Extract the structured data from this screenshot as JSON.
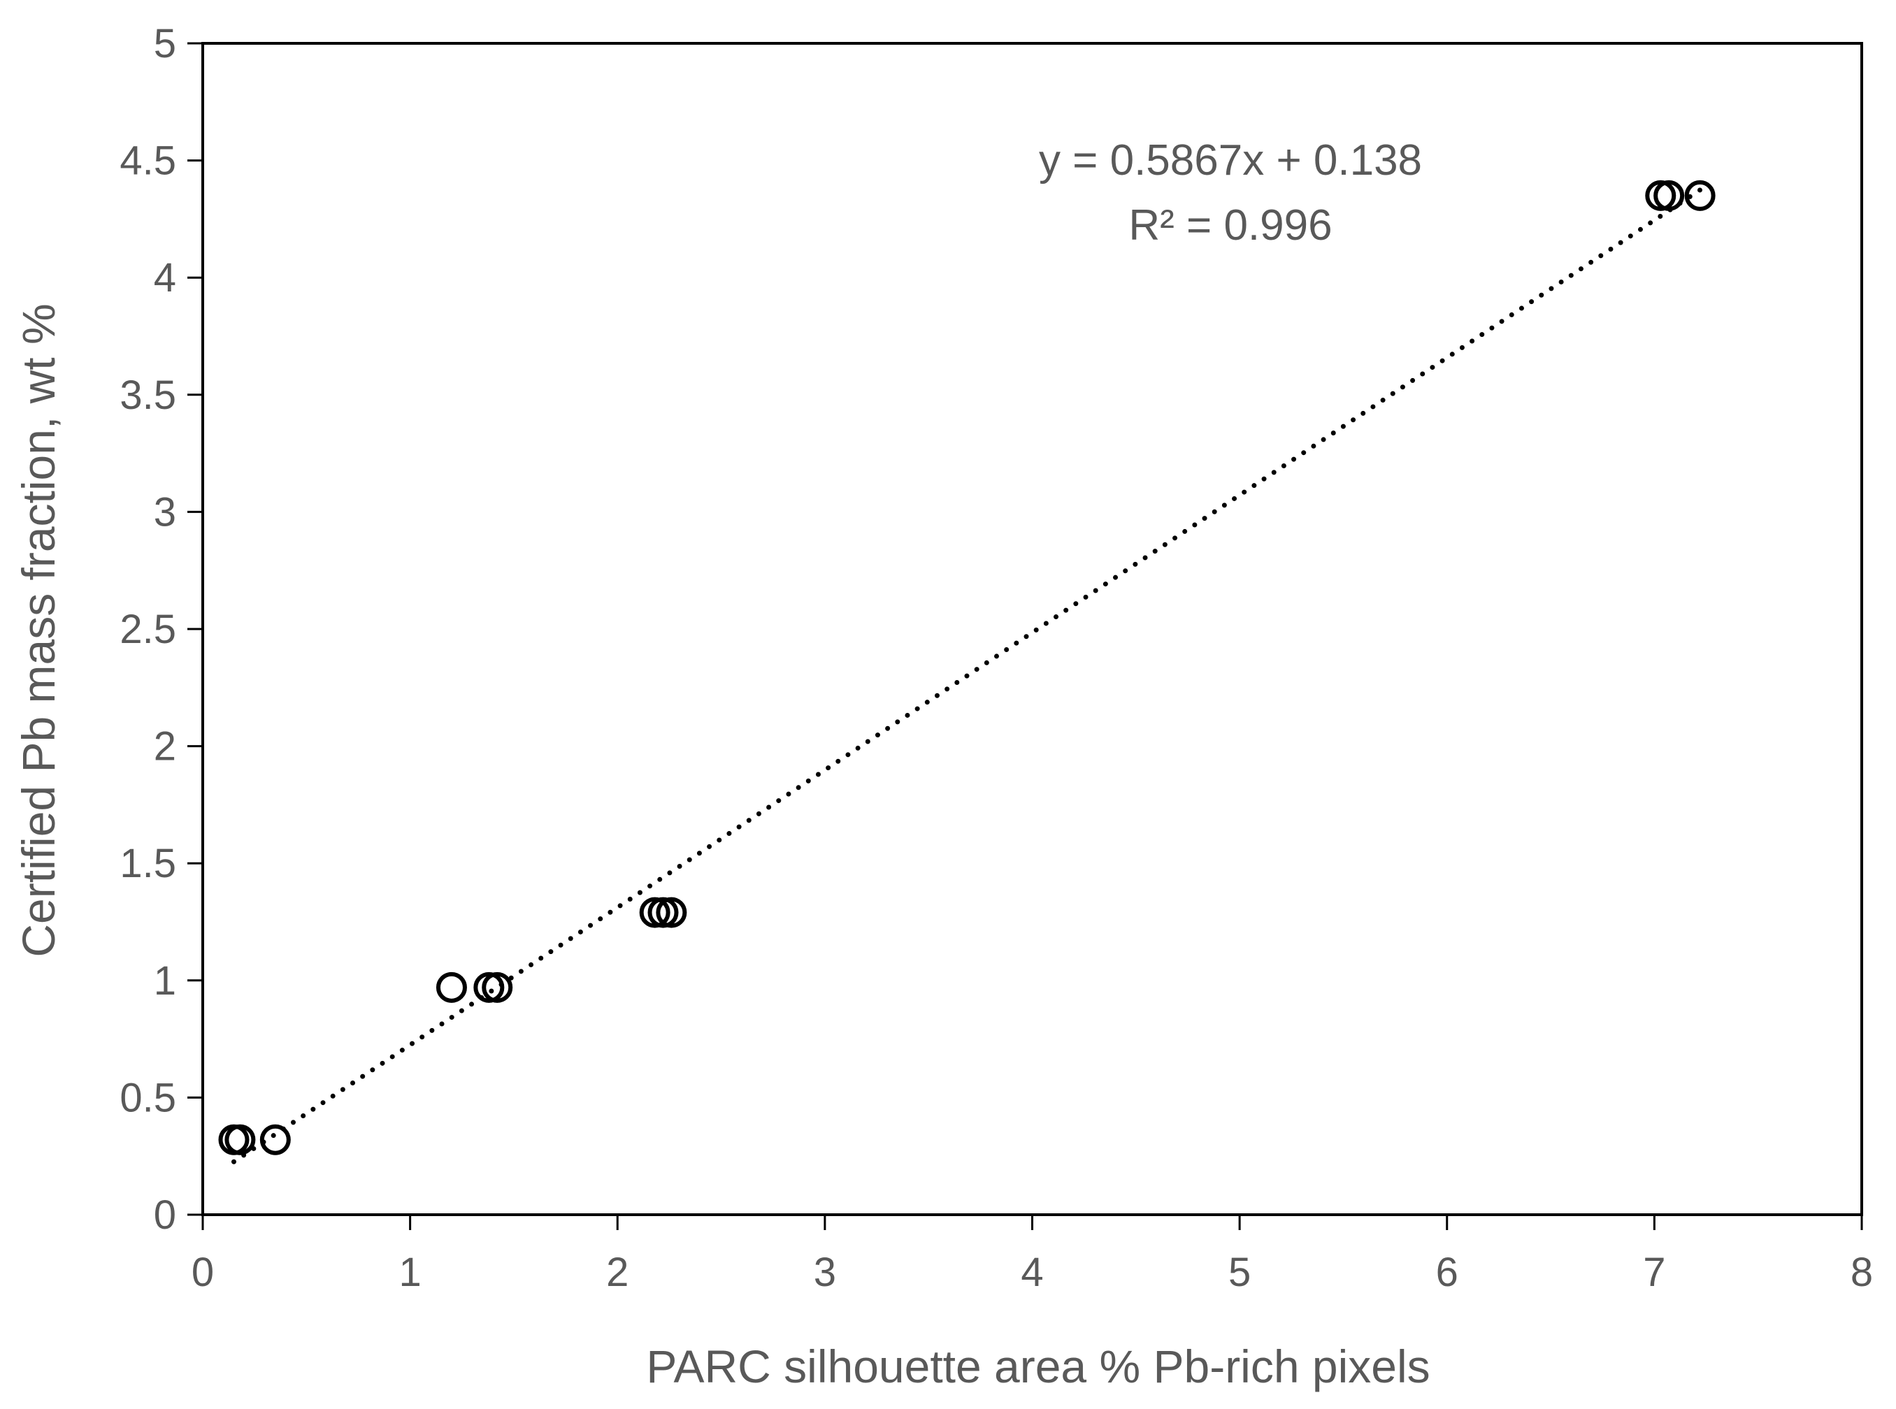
{
  "chart_data": {
    "type": "scatter",
    "title": "",
    "xlabel": "PARC silhouette area % Pb-rich pixels",
    "ylabel": "Certified Pb mass fraction, wt %",
    "xlim": [
      0,
      8
    ],
    "ylim": [
      0,
      5
    ],
    "xticks": [
      "0",
      "1",
      "2",
      "3",
      "4",
      "5",
      "6",
      "7",
      "8"
    ],
    "yticks": [
      "0",
      "0.5",
      "1",
      "1.5",
      "2",
      "2.5",
      "3",
      "3.5",
      "4",
      "4.5",
      "5"
    ],
    "grid": false,
    "legend": "none",
    "series": [
      {
        "marker": "open-circle",
        "color": "#000000",
        "points": [
          {
            "x": 0.15,
            "y": 0.32
          },
          {
            "x": 0.18,
            "y": 0.32
          },
          {
            "x": 0.35,
            "y": 0.32
          },
          {
            "x": 1.2,
            "y": 0.97
          },
          {
            "x": 1.38,
            "y": 0.97
          },
          {
            "x": 1.42,
            "y": 0.97
          },
          {
            "x": 2.18,
            "y": 1.29
          },
          {
            "x": 2.22,
            "y": 1.29
          },
          {
            "x": 2.26,
            "y": 1.29
          },
          {
            "x": 7.03,
            "y": 4.35
          },
          {
            "x": 7.07,
            "y": 4.35
          },
          {
            "x": 7.22,
            "y": 4.35
          }
        ]
      }
    ],
    "trendline": {
      "style": "dotted",
      "color": "#000000",
      "slope": 0.5867,
      "intercept": 0.138,
      "x_range": [
        0.15,
        7.22
      ]
    },
    "annotations": {
      "equation": "y = 0.5867x + 0.138",
      "r_squared": "R² = 0.996"
    },
    "colors": {
      "axis": "#000000",
      "text": "#595959",
      "marker": "#000000"
    }
  }
}
